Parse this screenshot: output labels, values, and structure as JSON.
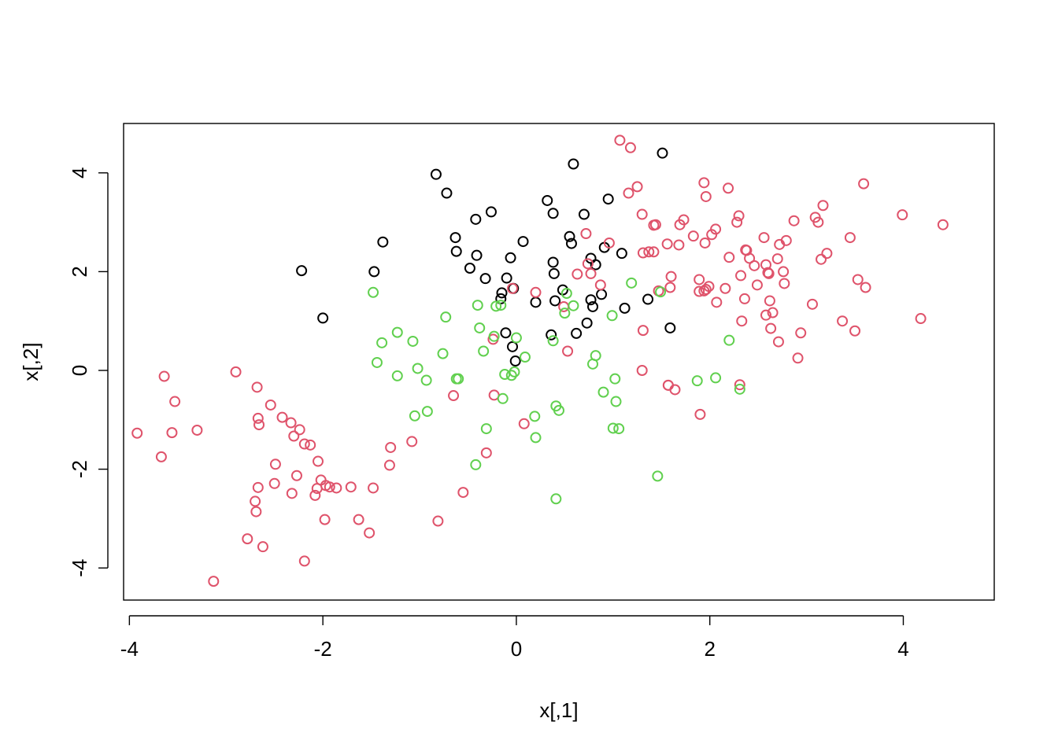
{
  "chart_data": {
    "type": "scatter",
    "title": "",
    "xlabel": "x[,1]",
    "ylabel": "x[,2]",
    "xlim": [
      -4.06,
      4.94
    ],
    "ylim": [
      -4.65,
      5.0
    ],
    "x_ticks": [
      -4,
      -2,
      0,
      2,
      4
    ],
    "y_ticks": [
      -4,
      -2,
      0,
      2,
      4
    ],
    "x_tick_labels": [
      "-4",
      "-2",
      "0",
      "2",
      "4"
    ],
    "y_tick_labels": [
      "-4",
      "-2",
      "0",
      "2",
      "4"
    ],
    "grid": false,
    "legend": "none",
    "series": [
      {
        "color": "#000000",
        "x": [
          -2.22,
          -1.47,
          -1.38,
          -2.0,
          -0.83,
          -0.72,
          -0.63,
          -0.62,
          -0.42,
          -0.41,
          -0.48,
          -0.32,
          -0.26,
          -0.1,
          -0.06,
          -0.03,
          -0.15,
          -0.16,
          0.07,
          0.32,
          0.38,
          0.39,
          0.55,
          0.57,
          0.59,
          0.7,
          0.95,
          0.77,
          0.82,
          0.91,
          1.09,
          1.51,
          -0.11,
          -0.04,
          -0.01,
          0.36,
          0.4,
          0.48,
          0.62,
          0.73,
          0.77,
          0.79,
          0.88,
          1.12,
          1.36,
          1.59,
          0.38,
          0.2
        ],
        "y": [
          2.02,
          2.0,
          2.6,
          1.06,
          3.97,
          3.59,
          2.69,
          2.41,
          3.06,
          2.33,
          2.07,
          1.86,
          3.21,
          1.87,
          2.28,
          1.66,
          1.57,
          1.45,
          2.61,
          3.44,
          3.18,
          1.96,
          2.71,
          2.57,
          4.18,
          3.16,
          3.47,
          2.27,
          2.14,
          2.49,
          2.37,
          4.4,
          0.76,
          0.48,
          0.19,
          0.72,
          1.41,
          1.63,
          0.75,
          0.96,
          1.43,
          1.29,
          1.54,
          1.26,
          1.44,
          0.86,
          2.19,
          1.38
        ]
      },
      {
        "color": "#DF536B",
        "x": [
          -3.92,
          -3.67,
          -3.64,
          -3.56,
          -3.53,
          -3.3,
          -2.9,
          -2.68,
          -2.67,
          -2.66,
          -2.54,
          -2.42,
          -2.33,
          -2.3,
          -2.24,
          -2.19,
          -2.13,
          -2.05,
          -2.27,
          -2.02,
          -1.97,
          -1.93,
          -1.86,
          -1.71,
          -1.48,
          -1.3,
          -1.31,
          -1.08,
          -2.5,
          -2.67,
          -2.69,
          -2.49,
          -2.32,
          -2.08,
          -2.06,
          -1.98,
          -2.7,
          -1.63,
          -1.52,
          -2.78,
          -2.62,
          -2.19,
          -3.13,
          -0.65,
          -0.55,
          -0.81,
          -0.31,
          -0.23,
          -0.24,
          -0.04,
          0.08,
          0.2,
          0.49,
          0.53,
          0.63,
          0.72,
          0.74,
          0.77,
          0.87,
          0.96,
          1.07,
          1.18,
          1.16,
          1.25,
          1.3,
          1.31,
          1.37,
          1.42,
          1.42,
          1.44,
          1.47,
          1.56,
          1.59,
          1.6,
          1.57,
          1.64,
          1.68,
          1.69,
          1.73,
          1.83,
          1.89,
          1.89,
          1.94,
          1.96,
          1.95,
          1.96,
          1.99,
          2.02,
          2.06,
          2.07,
          2.16,
          2.19,
          2.2,
          2.28,
          2.3,
          2.32,
          2.33,
          2.36,
          2.37,
          2.38,
          2.41,
          2.46,
          2.49,
          2.56,
          2.58,
          2.58,
          2.6,
          2.61,
          2.62,
          2.63,
          2.65,
          2.7,
          2.71,
          2.72,
          2.76,
          2.77,
          2.79,
          2.87,
          2.91,
          2.94,
          3.06,
          3.09,
          3.12,
          3.15,
          3.17,
          3.21,
          3.37,
          3.45,
          3.5,
          3.53,
          3.59,
          3.61,
          3.99,
          4.18,
          4.41,
          1.94,
          1.57,
          1.9,
          1.3,
          2.31,
          1.31
        ],
        "y": [
          -1.27,
          -1.75,
          -0.12,
          -1.26,
          -0.63,
          -1.21,
          -0.03,
          -0.34,
          -0.97,
          -1.1,
          -0.7,
          -0.95,
          -1.06,
          -1.33,
          -1.2,
          -1.49,
          -1.51,
          -1.84,
          -2.13,
          -2.22,
          -2.33,
          -2.36,
          -2.38,
          -2.36,
          -2.38,
          -1.56,
          -1.92,
          -1.44,
          -2.29,
          -2.37,
          -2.86,
          -1.9,
          -2.49,
          -2.53,
          -2.39,
          -3.02,
          -2.65,
          -3.02,
          -3.29,
          -3.41,
          -3.57,
          -3.86,
          -4.27,
          -0.51,
          -2.47,
          -3.05,
          -1.67,
          -0.5,
          0.63,
          1.66,
          -1.08,
          1.58,
          1.29,
          0.39,
          1.95,
          2.77,
          2.16,
          1.96,
          1.73,
          2.58,
          4.66,
          4.51,
          3.59,
          3.72,
          3.16,
          2.38,
          2.4,
          2.4,
          2.94,
          2.95,
          1.61,
          2.56,
          1.68,
          1.9,
          -0.3,
          -0.39,
          2.54,
          2.95,
          3.05,
          2.72,
          1.84,
          1.6,
          3.8,
          3.52,
          2.58,
          1.64,
          1.7,
          2.75,
          2.86,
          1.38,
          1.66,
          3.69,
          2.29,
          3.0,
          3.13,
          1.92,
          1.0,
          1.45,
          2.44,
          2.43,
          2.27,
          2.12,
          1.73,
          2.69,
          2.14,
          1.12,
          1.98,
          1.96,
          1.41,
          0.85,
          1.17,
          2.26,
          0.58,
          2.55,
          2.0,
          1.76,
          2.63,
          3.03,
          0.25,
          0.76,
          1.34,
          3.1,
          3.0,
          2.25,
          3.34,
          2.37,
          1.0,
          2.69,
          0.8,
          1.84,
          3.78,
          1.68,
          3.15,
          1.05,
          2.95,
          1.61,
          -0.3,
          -0.89,
          0.0,
          -0.29,
          0.81
        ]
      },
      {
        "color": "#61D04F",
        "x": [
          -1.48,
          -1.44,
          -1.39,
          -1.23,
          -1.23,
          -1.07,
          -1.05,
          -1.02,
          -0.93,
          -0.92,
          -0.76,
          -0.73,
          -0.62,
          -0.6,
          -0.42,
          -0.38,
          -0.34,
          -0.31,
          -0.23,
          -0.21,
          -0.16,
          -0.14,
          -0.12,
          -0.05,
          -0.02,
          0.0,
          0.09,
          0.19,
          0.2,
          0.38,
          0.41,
          0.41,
          0.44,
          0.5,
          0.52,
          0.59,
          0.79,
          0.82,
          0.9,
          0.99,
          1.02,
          1.03,
          1.06,
          1.19,
          1.46,
          1.49,
          1.87,
          2.06,
          2.2,
          2.31,
          -0.4,
          1.0
        ],
        "y": [
          1.58,
          0.16,
          0.56,
          0.77,
          -0.11,
          0.59,
          -0.92,
          0.04,
          -0.2,
          -0.83,
          0.34,
          1.08,
          -0.17,
          -0.17,
          -1.91,
          0.86,
          0.39,
          -1.18,
          0.69,
          1.3,
          1.32,
          -0.57,
          -0.08,
          -0.1,
          -0.03,
          0.66,
          0.27,
          -0.93,
          -1.36,
          0.6,
          -0.72,
          -2.6,
          -0.81,
          1.16,
          1.56,
          1.31,
          0.13,
          0.3,
          -0.44,
          1.11,
          -0.17,
          -0.63,
          -1.18,
          1.77,
          -2.14,
          1.59,
          -0.21,
          -0.15,
          0.61,
          -0.38,
          1.32,
          -1.17
        ]
      }
    ]
  }
}
